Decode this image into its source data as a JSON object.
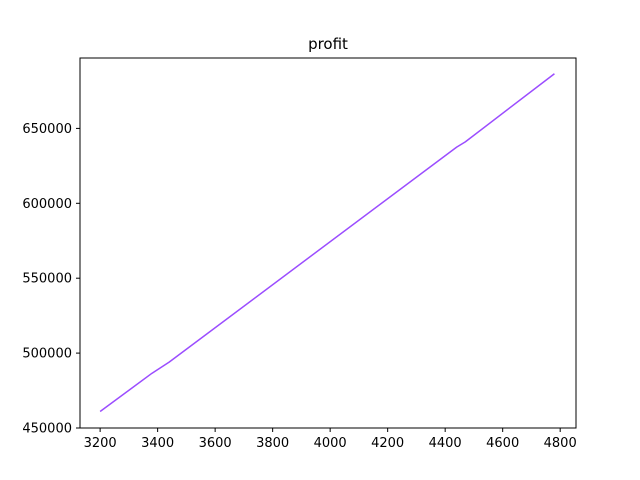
{
  "chart_data": {
    "type": "line",
    "title": "profit",
    "xlabel": "",
    "ylabel": "",
    "xlim": [
      3130,
      4855
    ],
    "ylim": [
      450000,
      697000
    ],
    "xticks": [
      3200,
      3400,
      3600,
      3800,
      4000,
      4200,
      4400,
      4600,
      4800
    ],
    "yticks": [
      450000,
      500000,
      550000,
      600000,
      650000
    ],
    "grid": false,
    "series": [
      {
        "color": "#9b4dff",
        "x": [
          3200,
          3380,
          3440,
          4440,
          4470,
          4780
        ],
        "y": [
          461000,
          486500,
          494000,
          637500,
          641000,
          686500
        ]
      }
    ]
  }
}
